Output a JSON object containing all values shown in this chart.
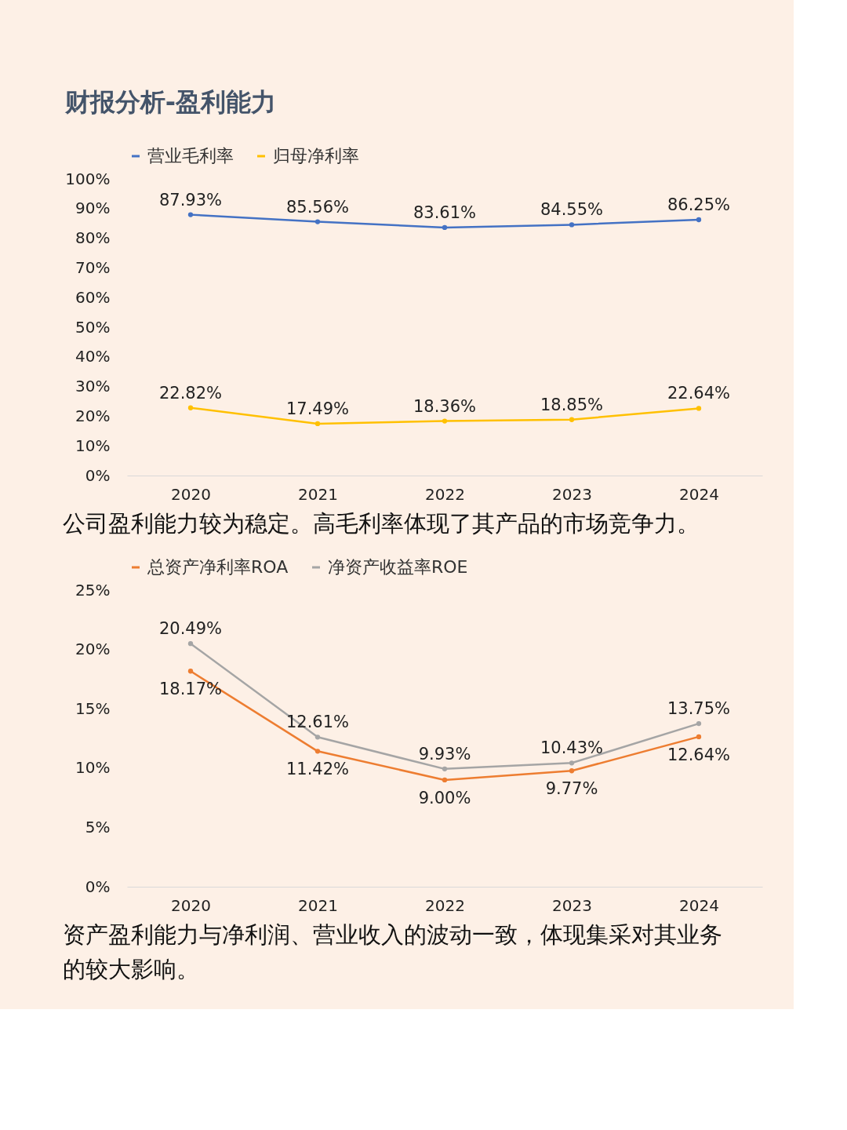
{
  "chart_data": [
    {
      "type": "line",
      "title": "财报分析-盈利能力",
      "categories": [
        "2020",
        "2021",
        "2022",
        "2023",
        "2024"
      ],
      "series": [
        {
          "name": "营业毛利率",
          "color": "#4472c4",
          "values": [
            87.93,
            85.56,
            83.61,
            84.55,
            86.25
          ],
          "value_labels": [
            "87.93%",
            "85.56%",
            "83.61%",
            "84.55%",
            "86.25%"
          ]
        },
        {
          "name": "归母净利率",
          "color": "#ffc000",
          "values": [
            22.82,
            17.49,
            18.36,
            18.85,
            22.64
          ],
          "value_labels": [
            "22.82%",
            "17.49%",
            "18.36%",
            "18.85%",
            "22.64%"
          ]
        }
      ],
      "ylim": [
        0,
        100
      ],
      "yticks": [
        {
          "value": 0,
          "label": "0%"
        },
        {
          "value": 10,
          "label": "10%"
        },
        {
          "value": 20,
          "label": "20%"
        },
        {
          "value": 30,
          "label": "30%"
        },
        {
          "value": 40,
          "label": "40%"
        },
        {
          "value": 50,
          "label": "50%"
        },
        {
          "value": 60,
          "label": "60%"
        },
        {
          "value": 70,
          "label": "70%"
        },
        {
          "value": 80,
          "label": "80%"
        },
        {
          "value": 90,
          "label": "90%"
        },
        {
          "value": 100,
          "label": "100%"
        }
      ],
      "grid": false,
      "legend": "top",
      "marker": "circle",
      "line_style": "solid",
      "annotations": [
        "公司盈利能力较为稳定。高毛利率体现了其产品的市场竞争力。"
      ]
    },
    {
      "type": "line",
      "categories": [
        "2020",
        "2021",
        "2022",
        "2023",
        "2024"
      ],
      "series": [
        {
          "name": "总资产净利率ROA",
          "color": "#ed7d31",
          "values": [
            18.17,
            11.42,
            9.0,
            9.77,
            12.64
          ],
          "value_labels": [
            "18.17%",
            "11.42%",
            "9.00%",
            "9.77%",
            "12.64%"
          ]
        },
        {
          "name": "净资产收益率ROE",
          "color": "#a5a5a5",
          "values": [
            20.49,
            12.61,
            9.93,
            10.43,
            13.75
          ],
          "value_labels": [
            "20.49%",
            "12.61%",
            "9.93%",
            "10.43%",
            "13.75%"
          ]
        }
      ],
      "ylim": [
        0,
        25
      ],
      "yticks": [
        {
          "value": 0,
          "label": "0%"
        },
        {
          "value": 5,
          "label": "5%"
        },
        {
          "value": 10,
          "label": "10%"
        },
        {
          "value": 15,
          "label": "15%"
        },
        {
          "value": 20,
          "label": "20%"
        },
        {
          "value": 25,
          "label": "25%"
        }
      ],
      "grid": false,
      "legend": "top",
      "marker": "circle",
      "line_style": "solid",
      "annotations": [
        "资产盈利能力与净利润、营业收入的波动一致，体现集采对其业务的较大影响。"
      ]
    }
  ]
}
